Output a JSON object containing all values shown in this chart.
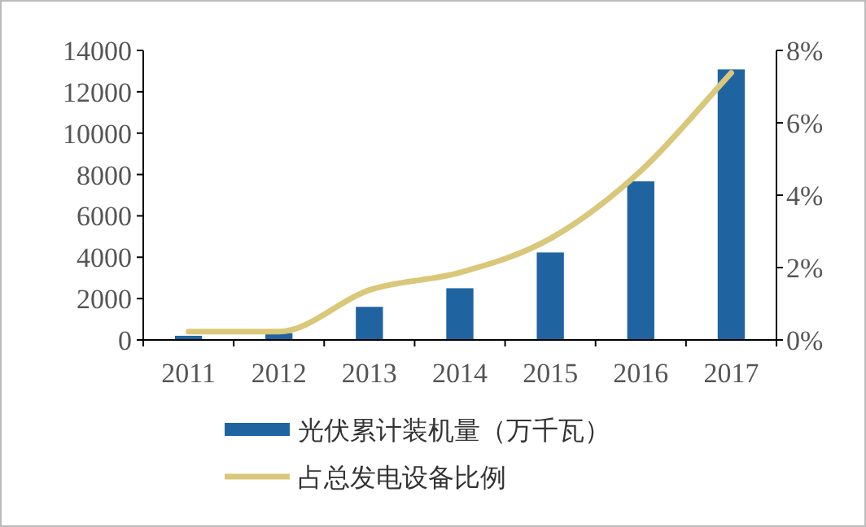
{
  "chart_data": {
    "type": "bar",
    "categories": [
      "2011",
      "2012",
      "2013",
      "2014",
      "2015",
      "2016",
      "2017"
    ],
    "series": [
      {
        "name": "光伏累计装机量（万千瓦）",
        "color": "#1f64a0",
        "values": [
          200,
          330,
          1600,
          2500,
          4230,
          7670,
          13080
        ]
      },
      {
        "name": "占总发电设备比例",
        "type": "line",
        "axis": "y2",
        "color": "#d9c77a",
        "values": [
          0.23,
          0.23,
          1.38,
          1.86,
          2.8,
          4.67,
          7.38
        ]
      }
    ],
    "ylim": [
      0,
      14000
    ],
    "yticks": [
      0,
      2000,
      4000,
      6000,
      8000,
      10000,
      12000,
      14000
    ],
    "y2lim": [
      0,
      8
    ],
    "y2ticks": [
      {
        "value": 0,
        "label": "0%"
      },
      {
        "value": 2,
        "label": "2%"
      },
      {
        "value": 4,
        "label": "4%"
      },
      {
        "value": 6,
        "label": "6%"
      },
      {
        "value": 8,
        "label": "8%"
      }
    ],
    "legend": "bottom",
    "grid": false,
    "line_style": "solid",
    "marker": "none"
  }
}
